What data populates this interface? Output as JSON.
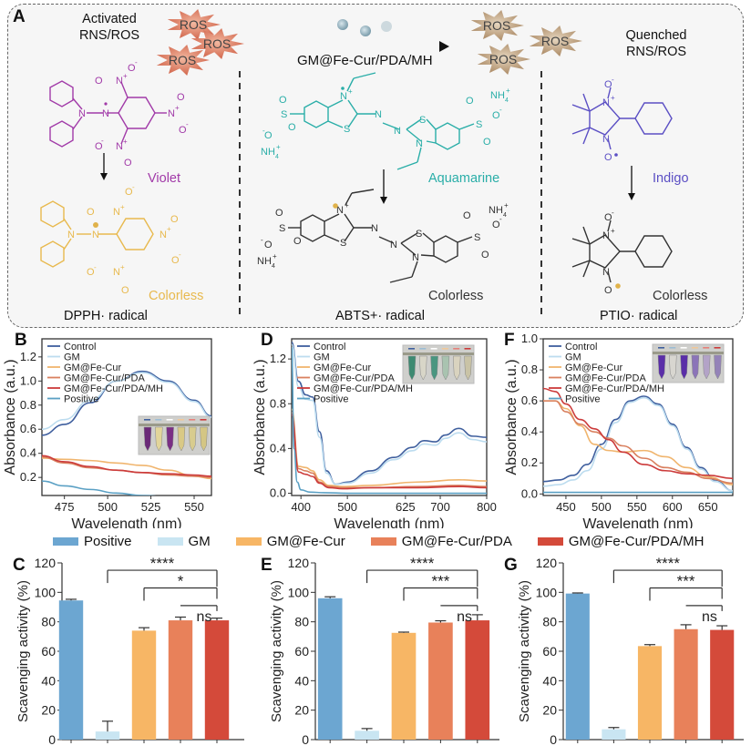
{
  "panelA": {
    "label": "A",
    "activated_title_1": "Activated",
    "activated_title_2": "RNS/ROS",
    "quenched_title_1": "Quenched",
    "quenched_title_2": "RNS/ROS",
    "ros_label": "ROS",
    "arrow_label": "GM@Fe-Cur/PDA/MH",
    "dpph": {
      "name": "DPPH· radical",
      "color_before": "Violet",
      "color_after": "Colorless",
      "before_hex": "#a13aa8",
      "after_hex": "#e8b94e"
    },
    "abts": {
      "name": "ABTS+· radical",
      "color_before": "Aquamarine",
      "color_after": "Colorless",
      "before_hex": "#2aaea8",
      "after_hex": "#333333"
    },
    "ptio": {
      "name": "PTIO· radical",
      "color_before": "Indigo",
      "color_after": "Colorless",
      "before_hex": "#5b4fc4",
      "after_hex": "#333333"
    },
    "ros_activated_hex": "#d9735a",
    "ros_quenched_hex": "#b59a7a"
  },
  "bar_legend": [
    {
      "label": "Positive",
      "color": "#6ca6d1"
    },
    {
      "label": "GM",
      "color": "#c9e5f2"
    },
    {
      "label": "GM@Fe-Cur",
      "color": "#f7b665"
    },
    {
      "label": "GM@Fe-Cur/PDA",
      "color": "#e8815a"
    },
    {
      "label": "GM@Fe-Cur/PDA/MH",
      "color": "#d44a3a"
    }
  ],
  "chart_data": [
    {
      "panel": "B",
      "type": "line",
      "xlabel": "Wavelength (nm)",
      "ylabel": "Absorbance (a.u.)",
      "xlim": [
        462,
        560
      ],
      "ylim": [
        0.05,
        1.35
      ],
      "xticks": [
        475,
        500,
        525,
        550
      ],
      "yticks": [
        0.2,
        0.4,
        0.6,
        0.8,
        1.0,
        1.2
      ],
      "ytick_labels": [
        "0.2",
        "0.4",
        "0.6",
        "0.8",
        "1.0",
        "1.2"
      ],
      "legend": "top-left",
      "inset": {
        "tubes": [
          "#6b2a78",
          "#e2d59a",
          "#7a2f84",
          "#d9c985",
          "#d8cc8e",
          "#d4c684"
        ]
      },
      "series": [
        {
          "name": "Control",
          "color": "#3f5f9e",
          "x": [
            462,
            475,
            490,
            505,
            520,
            535,
            550,
            560
          ],
          "y": [
            0.55,
            0.64,
            0.82,
            1.0,
            1.08,
            1.0,
            0.84,
            0.71
          ]
        },
        {
          "name": "GM",
          "color": "#bcdcef",
          "x": [
            462,
            475,
            490,
            505,
            520,
            535,
            550,
            560
          ],
          "y": [
            0.6,
            0.68,
            0.84,
            1.0,
            1.07,
            0.99,
            0.83,
            0.7
          ]
        },
        {
          "name": "GM@Fe-Cur",
          "color": "#f0b56e",
          "x": [
            462,
            475,
            490,
            505,
            520,
            535,
            550,
            560
          ],
          "y": [
            0.36,
            0.35,
            0.34,
            0.32,
            0.3,
            0.26,
            0.21,
            0.19
          ]
        },
        {
          "name": "GM@Fe-Cur/PDA",
          "color": "#d9805f",
          "x": [
            462,
            475,
            490,
            505,
            520,
            535,
            550,
            560
          ],
          "y": [
            0.37,
            0.32,
            0.28,
            0.26,
            0.24,
            0.22,
            0.21,
            0.2
          ]
        },
        {
          "name": "GM@Fe-Cur/PDA/MH",
          "color": "#cc3b3b",
          "x": [
            462,
            475,
            490,
            505,
            520,
            535,
            550,
            560
          ],
          "y": [
            0.38,
            0.33,
            0.29,
            0.26,
            0.24,
            0.23,
            0.22,
            0.21
          ]
        },
        {
          "name": "Positive",
          "color": "#5aa0c4",
          "x": [
            462,
            475,
            490,
            505,
            520,
            535,
            550,
            560
          ],
          "y": [
            0.17,
            0.13,
            0.1,
            0.07,
            0.05,
            0.04,
            0.03,
            0.03
          ]
        }
      ]
    },
    {
      "panel": "D",
      "type": "line",
      "xlabel": "Wavelength (nm)",
      "ylabel": "Absorbance (a.u.)",
      "xlim": [
        380,
        800
      ],
      "ylim": [
        -0.02,
        1.38
      ],
      "xticks": [
        400,
        500,
        625,
        700,
        800
      ],
      "yticks": [
        0.0,
        0.4,
        0.8,
        1.2
      ],
      "ytick_labels": [
        "0.0",
        "0.4",
        "0.8",
        "1.2"
      ],
      "legend": "top-left",
      "inset": {
        "tubes": [
          "#3e8a72",
          "#d8d6c8",
          "#4a9680",
          "#a9c3b0",
          "#d9d3bf",
          "#c9c3a6"
        ]
      },
      "series": [
        {
          "name": "Control",
          "color": "#3f5f9e",
          "x": [
            380,
            395,
            410,
            425,
            440,
            455,
            475,
            500,
            550,
            600,
            640,
            665,
            690,
            710,
            740,
            770,
            800
          ],
          "y": [
            1.35,
            1.0,
            0.88,
            0.86,
            0.55,
            0.2,
            0.08,
            0.1,
            0.2,
            0.32,
            0.41,
            0.47,
            0.46,
            0.52,
            0.58,
            0.51,
            0.5
          ]
        },
        {
          "name": "GM",
          "color": "#bcdcef",
          "x": [
            380,
            395,
            410,
            425,
            440,
            455,
            475,
            500,
            550,
            600,
            640,
            665,
            690,
            710,
            740,
            770,
            800
          ],
          "y": [
            1.33,
            0.95,
            0.84,
            0.83,
            0.5,
            0.18,
            0.08,
            0.09,
            0.18,
            0.3,
            0.38,
            0.44,
            0.43,
            0.49,
            0.54,
            0.48,
            0.46
          ]
        },
        {
          "name": "GM@Fe-Cur",
          "color": "#f0b56e",
          "x": [
            380,
            395,
            410,
            425,
            440,
            460,
            490,
            550,
            650,
            740,
            800
          ],
          "y": [
            0.75,
            0.24,
            0.23,
            0.2,
            0.12,
            0.07,
            0.06,
            0.07,
            0.1,
            0.12,
            0.11
          ]
        },
        {
          "name": "GM@Fe-Cur/PDA",
          "color": "#d9805f",
          "x": [
            380,
            395,
            410,
            425,
            440,
            460,
            490,
            550,
            650,
            740,
            800
          ],
          "y": [
            0.72,
            0.22,
            0.2,
            0.18,
            0.1,
            0.06,
            0.05,
            0.05,
            0.06,
            0.07,
            0.06
          ]
        },
        {
          "name": "GM@Fe-Cur/PDA/MH",
          "color": "#cc3b3b",
          "x": [
            380,
            395,
            410,
            425,
            440,
            460,
            490,
            550,
            650,
            740,
            800
          ],
          "y": [
            0.7,
            0.19,
            0.17,
            0.15,
            0.09,
            0.05,
            0.04,
            0.05,
            0.05,
            0.06,
            0.05
          ]
        },
        {
          "name": "Positive",
          "color": "#5aa0c4",
          "x": [
            380,
            385,
            392,
            400,
            420,
            450,
            500,
            600,
            800
          ],
          "y": [
            1.3,
            0.4,
            0.1,
            0.03,
            0.01,
            0.005,
            0.0,
            0.0,
            0.0
          ]
        }
      ]
    },
    {
      "panel": "F",
      "type": "line",
      "xlabel": "Wavelength (nm)",
      "ylabel": "Absorbance (a.u.)",
      "xlim": [
        418,
        685
      ],
      "ylim": [
        -0.01,
        1.0
      ],
      "xticks": [
        450,
        500,
        550,
        600,
        650
      ],
      "yticks": [
        0.0,
        0.2,
        0.4,
        0.6,
        0.8,
        1.0
      ],
      "ytick_labels": [
        "0.0",
        "0.2",
        "0.4",
        "0.6",
        "0.8",
        "1.0"
      ],
      "legend": "top-left",
      "inset": {
        "tubes": [
          "#5a2ea8",
          "#d8d6d0",
          "#5a2ea8",
          "#8b74b8",
          "#b3a3c7",
          "#9483b8"
        ]
      },
      "series": [
        {
          "name": "Control",
          "color": "#3f5f9e",
          "x": [
            418,
            440,
            460,
            480,
            500,
            520,
            540,
            560,
            580,
            600,
            620,
            640,
            660,
            685
          ],
          "y": [
            0.08,
            0.09,
            0.12,
            0.19,
            0.32,
            0.48,
            0.6,
            0.63,
            0.58,
            0.45,
            0.3,
            0.17,
            0.09,
            0.02
          ]
        },
        {
          "name": "GM",
          "color": "#bcdcef",
          "x": [
            418,
            440,
            460,
            480,
            500,
            520,
            540,
            560,
            580,
            600,
            620,
            640,
            660,
            685
          ],
          "y": [
            0.05,
            0.06,
            0.09,
            0.15,
            0.29,
            0.46,
            0.59,
            0.62,
            0.57,
            0.44,
            0.29,
            0.16,
            0.08,
            0.02
          ]
        },
        {
          "name": "GM@Fe-Cur",
          "color": "#f0b56e",
          "x": [
            418,
            435,
            450,
            470,
            490,
            510,
            530,
            560,
            590,
            620,
            650,
            685
          ],
          "y": [
            0.6,
            0.6,
            0.55,
            0.44,
            0.32,
            0.28,
            0.27,
            0.28,
            0.24,
            0.17,
            0.11,
            0.06
          ]
        },
        {
          "name": "GM@Fe-Cur/PDA",
          "color": "#d9805f",
          "x": [
            418,
            435,
            450,
            470,
            490,
            510,
            530,
            560,
            590,
            620,
            650,
            685
          ],
          "y": [
            0.6,
            0.6,
            0.53,
            0.45,
            0.4,
            0.36,
            0.31,
            0.23,
            0.17,
            0.14,
            0.1,
            0.07
          ]
        },
        {
          "name": "GM@Fe-Cur/PDA/MH",
          "color": "#cc3b3b",
          "x": [
            418,
            435,
            450,
            470,
            490,
            510,
            530,
            560,
            590,
            620,
            650,
            685
          ],
          "y": [
            0.68,
            0.66,
            0.58,
            0.48,
            0.42,
            0.35,
            0.27,
            0.19,
            0.15,
            0.13,
            0.12,
            0.1
          ]
        },
        {
          "name": "Positive",
          "color": "#5aa0c4",
          "x": [
            418,
            685
          ],
          "y": [
            0.01,
            0.01
          ]
        }
      ]
    },
    {
      "panel": "C",
      "type": "bar",
      "ylabel": "Scavenging activity (%)",
      "ylim": [
        0,
        120
      ],
      "yticks": [
        0,
        20,
        40,
        60,
        80,
        100,
        120
      ],
      "categories": [
        "Positive",
        "GM",
        "GM@Fe-Cur",
        "GM@Fe-Cur/PDA",
        "GM@Fe-Cur/PDA/MH"
      ],
      "values": [
        94.5,
        5.5,
        74.0,
        81.0,
        81.0
      ],
      "errors": [
        0.8,
        7.0,
        2.0,
        2.2,
        1.5
      ],
      "significance": [
        {
          "from": 1,
          "to": 4,
          "label": "****"
        },
        {
          "from": 2,
          "to": 4,
          "label": "*"
        },
        {
          "from": 3,
          "to": 4,
          "label": "ns"
        }
      ]
    },
    {
      "panel": "E",
      "type": "bar",
      "ylabel": "Scavenging activity (%)",
      "ylim": [
        0,
        120
      ],
      "yticks": [
        0,
        20,
        40,
        60,
        80,
        100,
        120
      ],
      "categories": [
        "Positive",
        "GM",
        "GM@Fe-Cur",
        "GM@Fe-Cur/PDA",
        "GM@Fe-Cur/PDA/MH"
      ],
      "values": [
        96.0,
        6.0,
        72.5,
        79.5,
        81.0
      ],
      "errors": [
        1.0,
        1.5,
        0.5,
        1.2,
        3.8
      ],
      "significance": [
        {
          "from": 1,
          "to": 4,
          "label": "****"
        },
        {
          "from": 2,
          "to": 4,
          "label": "***"
        },
        {
          "from": 3,
          "to": 4,
          "label": "ns"
        }
      ]
    },
    {
      "panel": "G",
      "type": "bar",
      "ylabel": "Scavenging activity (%)",
      "ylim": [
        0,
        120
      ],
      "yticks": [
        0,
        20,
        40,
        60,
        80,
        100,
        120
      ],
      "categories": [
        "Positive",
        "GM",
        "GM@Fe-Cur",
        "GM@Fe-Cur/PDA",
        "GM@Fe-Cur/PDA/MH"
      ],
      "values": [
        99.2,
        7.0,
        63.5,
        75.0,
        74.5
      ],
      "errors": [
        0.4,
        1.2,
        1.0,
        3.0,
        2.8
      ],
      "significance": [
        {
          "from": 1,
          "to": 4,
          "label": "****"
        },
        {
          "from": 2,
          "to": 4,
          "label": "***"
        },
        {
          "from": 3,
          "to": 4,
          "label": "ns"
        }
      ]
    }
  ]
}
